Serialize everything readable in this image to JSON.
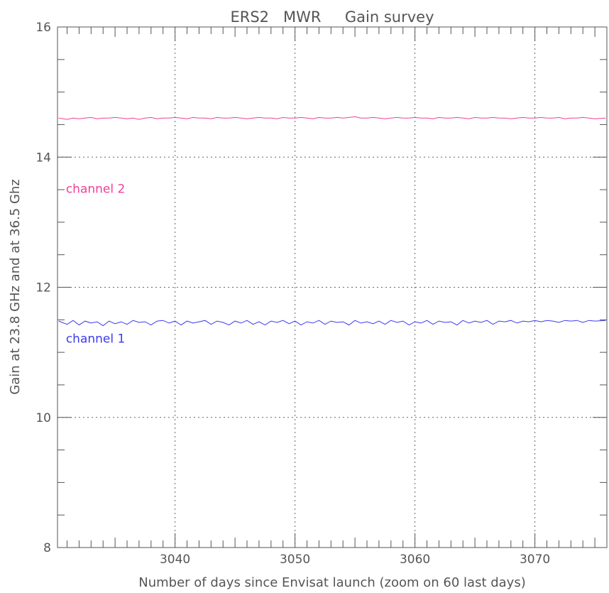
{
  "chart_data": {
    "type": "line",
    "title": "ERS2   MWR     Gain survey",
    "xlabel": "Number of days since Envisat launch (zoom on 60 last days)",
    "ylabel": "Gain at 23.8 GHz and at 36.5 Ghz",
    "xlim": [
      3030.2,
      3076
    ],
    "ylim": [
      8,
      16
    ],
    "x_ticks": [
      3040,
      3050,
      3060,
      3070
    ],
    "x_tick_labels": [
      "3040",
      "3050",
      "3060",
      "3070"
    ],
    "y_ticks": [
      8,
      10,
      12,
      14,
      16
    ],
    "y_tick_labels": [
      "8",
      "10",
      "12",
      "14",
      "16"
    ],
    "grid": true,
    "series": [
      {
        "name": "channel 1",
        "color": "#3b3bf0",
        "label_at": {
          "x": 3030.9,
          "y": 11.15
        },
        "x": [
          3030.3,
          3031,
          3031.5,
          3032,
          3032.5,
          3033,
          3033.5,
          3034,
          3034.5,
          3035,
          3035.5,
          3036,
          3036.5,
          3037,
          3037.5,
          3038,
          3038.5,
          3039,
          3039.5,
          3040,
          3040.5,
          3041,
          3041.5,
          3042,
          3042.5,
          3043,
          3043.5,
          3044,
          3044.5,
          3045,
          3045.5,
          3046,
          3046.5,
          3047,
          3047.5,
          3048,
          3048.5,
          3049,
          3049.5,
          3050,
          3050.5,
          3051,
          3051.5,
          3052,
          3052.5,
          3053,
          3053.5,
          3054,
          3054.5,
          3055,
          3055.5,
          3056,
          3056.5,
          3057,
          3057.5,
          3058,
          3058.5,
          3059,
          3059.5,
          3060,
          3060.5,
          3061,
          3061.5,
          3062,
          3062.5,
          3063,
          3063.5,
          3064,
          3064.5,
          3065,
          3065.5,
          3066,
          3066.5,
          3067,
          3067.5,
          3068,
          3068.5,
          3069,
          3069.5,
          3070,
          3070.5,
          3071,
          3071.5,
          3072,
          3072.5,
          3073,
          3073.5,
          3074,
          3074.5,
          3075,
          3075.9
        ],
        "values": [
          11.48,
          11.43,
          11.49,
          11.42,
          11.48,
          11.45,
          11.47,
          11.41,
          11.48,
          11.44,
          11.47,
          11.43,
          11.49,
          11.46,
          11.47,
          11.42,
          11.48,
          11.49,
          11.45,
          11.48,
          11.42,
          11.48,
          11.45,
          11.47,
          11.49,
          11.43,
          11.48,
          11.46,
          11.42,
          11.48,
          11.45,
          11.49,
          11.43,
          11.47,
          11.42,
          11.48,
          11.46,
          11.49,
          11.44,
          11.48,
          11.42,
          11.47,
          11.45,
          11.49,
          11.43,
          11.48,
          11.46,
          11.47,
          11.42,
          11.49,
          11.45,
          11.47,
          11.44,
          11.48,
          11.43,
          11.49,
          11.46,
          11.48,
          11.42,
          11.47,
          11.45,
          11.49,
          11.43,
          11.48,
          11.46,
          11.47,
          11.42,
          11.49,
          11.45,
          11.48,
          11.46,
          11.49,
          11.43,
          11.48,
          11.47,
          11.49,
          11.45,
          11.48,
          11.47,
          11.49,
          11.47,
          11.49,
          11.48,
          11.46,
          11.49,
          11.48,
          11.49,
          11.46,
          11.49,
          11.48,
          11.49
        ]
      },
      {
        "name": "channel 2",
        "color": "#f0409a",
        "label_at": {
          "x": 3030.9,
          "y": 13.45
        },
        "x": [
          3030.3,
          3031,
          3031.5,
          3032,
          3032.5,
          3033,
          3033.5,
          3034,
          3034.5,
          3035,
          3035.5,
          3036,
          3036.5,
          3037,
          3037.5,
          3038,
          3038.5,
          3039,
          3039.5,
          3040,
          3040.5,
          3041,
          3041.5,
          3042,
          3042.5,
          3043,
          3043.5,
          3044,
          3044.5,
          3045,
          3045.5,
          3046,
          3046.5,
          3047,
          3047.5,
          3048,
          3048.5,
          3049,
          3049.5,
          3050,
          3050.5,
          3051,
          3051.5,
          3052,
          3052.5,
          3053,
          3053.5,
          3054,
          3054.5,
          3055,
          3055.5,
          3056,
          3056.5,
          3057,
          3057.5,
          3058,
          3058.5,
          3059,
          3059.5,
          3060,
          3060.5,
          3061,
          3061.5,
          3062,
          3062.5,
          3063,
          3063.5,
          3064,
          3064.5,
          3065,
          3065.5,
          3066,
          3066.5,
          3067,
          3067.5,
          3068,
          3068.5,
          3069,
          3069.5,
          3070,
          3070.5,
          3071,
          3071.5,
          3072,
          3072.5,
          3073,
          3073.5,
          3074,
          3074.5,
          3075,
          3075.9
        ],
        "values": [
          14.6,
          14.58,
          14.6,
          14.59,
          14.6,
          14.61,
          14.59,
          14.6,
          14.6,
          14.61,
          14.6,
          14.59,
          14.6,
          14.58,
          14.6,
          14.61,
          14.59,
          14.6,
          14.6,
          14.61,
          14.6,
          14.59,
          14.61,
          14.6,
          14.6,
          14.59,
          14.61,
          14.6,
          14.6,
          14.61,
          14.6,
          14.59,
          14.6,
          14.61,
          14.6,
          14.6,
          14.59,
          14.61,
          14.6,
          14.6,
          14.61,
          14.6,
          14.59,
          14.61,
          14.6,
          14.6,
          14.61,
          14.6,
          14.61,
          14.62,
          14.6,
          14.6,
          14.61,
          14.6,
          14.59,
          14.6,
          14.61,
          14.6,
          14.6,
          14.61,
          14.6,
          14.6,
          14.59,
          14.61,
          14.6,
          14.6,
          14.61,
          14.6,
          14.59,
          14.61,
          14.6,
          14.6,
          14.61,
          14.6,
          14.6,
          14.59,
          14.6,
          14.61,
          14.6,
          14.6,
          14.61,
          14.6,
          14.6,
          14.61,
          14.59,
          14.6,
          14.6,
          14.61,
          14.6,
          14.59,
          14.6
        ]
      }
    ]
  }
}
